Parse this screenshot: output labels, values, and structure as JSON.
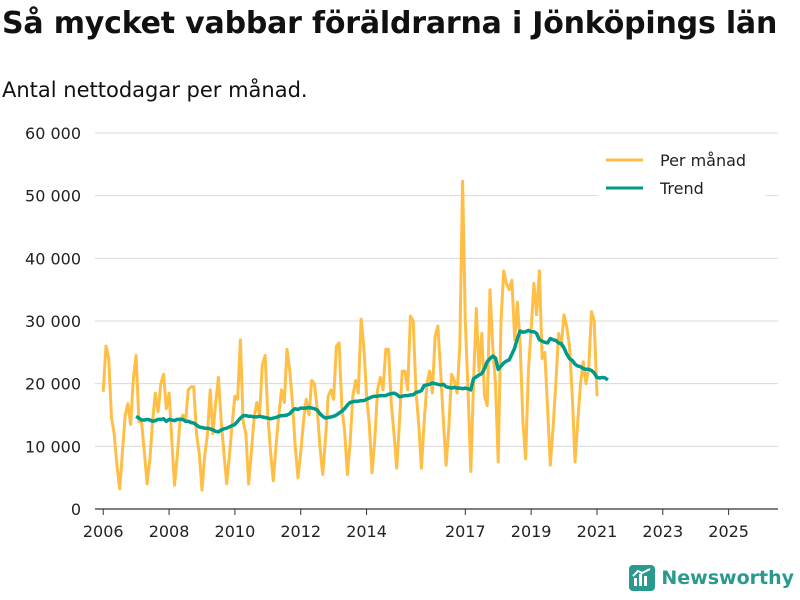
{
  "title": "Så mycket vabbar föräldrarna i Jönköpings län",
  "subtitle": "Antal nettodagar per månad.",
  "brand": {
    "name": "Newsworthy",
    "accent": "#2a9a8e"
  },
  "colors": {
    "monthly": "#ffbf47",
    "trend": "#00998a",
    "grid": "#d9d9d9",
    "axis": "#333333"
  },
  "chart_data": {
    "type": "line",
    "title": "Så mycket vabbar föräldrarna i Jönköpings län",
    "subtitle": "Antal nettodagar per månad.",
    "xlabel": "",
    "ylabel": "",
    "ylim": [
      0,
      60000
    ],
    "yticks": [
      0,
      10000,
      20000,
      30000,
      40000,
      50000,
      60000
    ],
    "ytick_labels": [
      "0",
      "10 000",
      "20 000",
      "30 000",
      "40 000",
      "50 000",
      "60 000"
    ],
    "xlim": [
      2005.75,
      2026.5
    ],
    "xticks": [
      2006,
      2008,
      2010,
      2012,
      2014,
      2017,
      2019,
      2021,
      2023,
      2025
    ],
    "xtick_labels": [
      "2006",
      "2008",
      "2010",
      "2012",
      "2014",
      "2017",
      "2019",
      "2021",
      "2023",
      "2025"
    ],
    "legend": [
      "Per månad",
      "Trend"
    ],
    "legend_position": "top-right",
    "grid": true,
    "start": "2006-01",
    "series": [
      {
        "name": "Per månad",
        "frequency": "monthly",
        "values": [
          18700,
          26000,
          24000,
          14500,
          12000,
          7000,
          3200,
          9000,
          15000,
          16800,
          13500,
          21000,
          24500,
          14000,
          13800,
          9000,
          4000,
          8000,
          14000,
          18500,
          15500,
          20000,
          21500,
          16000,
          18500,
          11000,
          3800,
          8500,
          14000,
          15000,
          14000,
          19000,
          19500,
          19500,
          12000,
          9000,
          3000,
          8500,
          12000,
          19000,
          12000,
          17000,
          21000,
          14000,
          9000,
          4000,
          8500,
          13500,
          18000,
          17500,
          27000,
          14000,
          12000,
          4000,
          9000,
          14500,
          17000,
          15000,
          23000,
          24500,
          15000,
          9000,
          4500,
          10000,
          15000,
          19000,
          17000,
          25500,
          22000,
          17000,
          10000,
          5000,
          9000,
          14000,
          17500,
          15000,
          20500,
          20000,
          16000,
          10000,
          5500,
          11000,
          18000,
          19000,
          17500,
          26000,
          26500,
          16000,
          12500,
          5500,
          10500,
          18000,
          20500,
          18500,
          30300,
          26000,
          18000,
          13500,
          5800,
          11000,
          19000,
          21000,
          19000,
          25500,
          25500,
          17000,
          12000,
          6500,
          14000,
          22000,
          22000,
          19000,
          30800,
          30000,
          19000,
          13500,
          6500,
          14000,
          20000,
          22000,
          18500,
          27500,
          29200,
          22000,
          14000,
          7000,
          13000,
          21500,
          20500,
          18500,
          26000,
          52300,
          30000,
          19000,
          6000,
          20000,
          32000,
          22000,
          28000,
          18000,
          16500,
          35000,
          26000,
          20000,
          7500,
          30000,
          38000,
          36000,
          35000,
          36500,
          27000,
          33000,
          26000,
          14000,
          8000,
          22000,
          28500,
          36000,
          31000,
          38000,
          24000,
          25000,
          16000,
          7000,
          13000,
          20000,
          28000,
          26000,
          31000,
          29000,
          26000,
          18000,
          7500,
          14000,
          20000,
          23500,
          20000,
          22500,
          31500,
          30000,
          18000
        ]
      },
      {
        "name": "Trend",
        "frequency": "monthly",
        "start": "2007-01",
        "values": [
          14800,
          14500,
          14200,
          14200,
          14300,
          14200,
          14000,
          14100,
          14300,
          14300,
          14400,
          14000,
          14300,
          14200,
          14100,
          14300,
          14300,
          14300,
          14000,
          14000,
          13800,
          13700,
          13400,
          13100,
          13000,
          12900,
          12900,
          12800,
          12600,
          12400,
          12300,
          12600,
          12800,
          12900,
          13100,
          13300,
          13500,
          14000,
          14500,
          14900,
          14900,
          14800,
          14800,
          14700,
          14700,
          14800,
          14700,
          14600,
          14500,
          14400,
          14500,
          14600,
          14800,
          14900,
          14900,
          15000,
          15200,
          15700,
          16000,
          15900,
          16100,
          16100,
          16100,
          16200,
          16100,
          16000,
          15800,
          15200,
          14800,
          14500,
          14600,
          14700,
          14800,
          15000,
          15300,
          15600,
          16000,
          16600,
          17000,
          17100,
          17200,
          17200,
          17300,
          17300,
          17500,
          17700,
          17900,
          18000,
          18000,
          18100,
          18100,
          18100,
          18300,
          18400,
          18500,
          18300,
          17900,
          18000,
          18100,
          18100,
          18200,
          18200,
          18600,
          18700,
          18900,
          19700,
          19800,
          19900,
          20100,
          20000,
          19900,
          19800,
          19900,
          19500,
          19400,
          19300,
          19400,
          19300,
          19300,
          19200,
          19300,
          19200,
          19000,
          20800,
          21100,
          21400,
          21600,
          22400,
          23500,
          24000,
          24400,
          24100,
          22300,
          22800,
          23300,
          23600,
          23800,
          24700,
          25700,
          27200,
          28400,
          28200,
          28300,
          28500,
          28300,
          28300,
          28000,
          27000,
          26800,
          26600,
          26500,
          27200,
          27000,
          26900,
          26500,
          26400,
          25700,
          24700,
          24000,
          23700,
          23100,
          22800,
          22700,
          22400,
          22300,
          22300,
          22100,
          21700,
          21000,
          20900,
          21000,
          20900,
          20600
        ]
      }
    ]
  }
}
